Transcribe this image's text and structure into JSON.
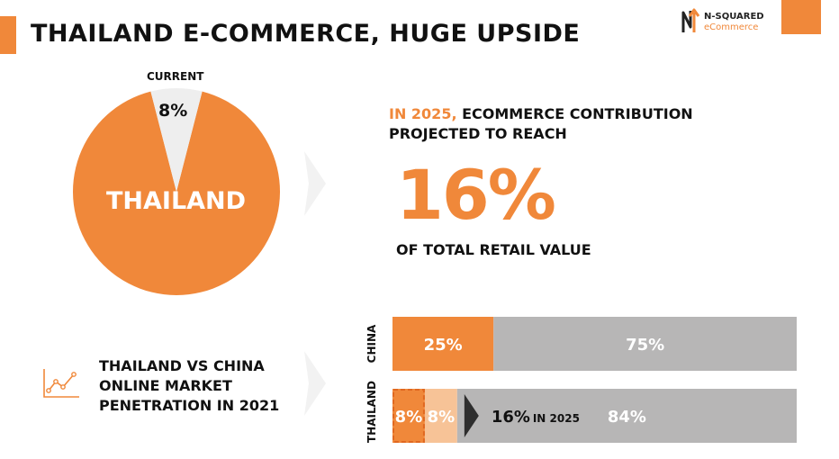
{
  "header": {
    "title": "THAILAND E-COMMERCE, HUGE UPSIDE",
    "logo": {
      "name": "N-SQUARED",
      "sub": "eCommerce",
      "icon": "n-squared-logo-icon"
    }
  },
  "colors": {
    "accent": "#f0883a",
    "accent_light": "#f7c397",
    "grey": "#b7b6b6",
    "pie_rest": "#eeeeee",
    "chevron": "#f2f2f2"
  },
  "projection": {
    "highlight": "IN 2025,",
    "line1_rest": "ECOMMERCE CONTRIBUTION",
    "line2": "PROJECTED TO REACH",
    "value": "16%",
    "suffix": "OF TOTAL RETAIL VALUE"
  },
  "comparison": {
    "icon": "trend-chart-icon",
    "lines": [
      "THAILAND VS CHINA",
      "ONLINE MARKET",
      "PENETRATION IN 2021"
    ]
  },
  "chart_data": [
    {
      "type": "pie",
      "current_label": "CURRENT",
      "slices": [
        {
          "name": "THAILAND",
          "value": 92,
          "label": "THAILAND",
          "color": "#f0883a"
        },
        {
          "name": "",
          "value": 8,
          "label": "8%",
          "color": "#eeeeee"
        }
      ]
    },
    {
      "type": "bar",
      "orientation": "horizontal",
      "stacked": true,
      "categories": [
        "CHINA",
        "THAILAND"
      ],
      "series": [
        {
          "values": [
            25,
            8
          ],
          "labels": [
            "25%",
            "8%"
          ],
          "color": "#f0883a"
        },
        {
          "values": [
            0,
            8
          ],
          "labels": [
            "",
            "8%"
          ],
          "color": "#f7c397"
        },
        {
          "values": [
            75,
            84
          ],
          "labels": [
            "75%",
            "84%"
          ],
          "color": "#b7b6b6"
        }
      ],
      "xlim": [
        0,
        100
      ],
      "annotation": {
        "value": "16%",
        "note": "IN 2025"
      }
    }
  ]
}
